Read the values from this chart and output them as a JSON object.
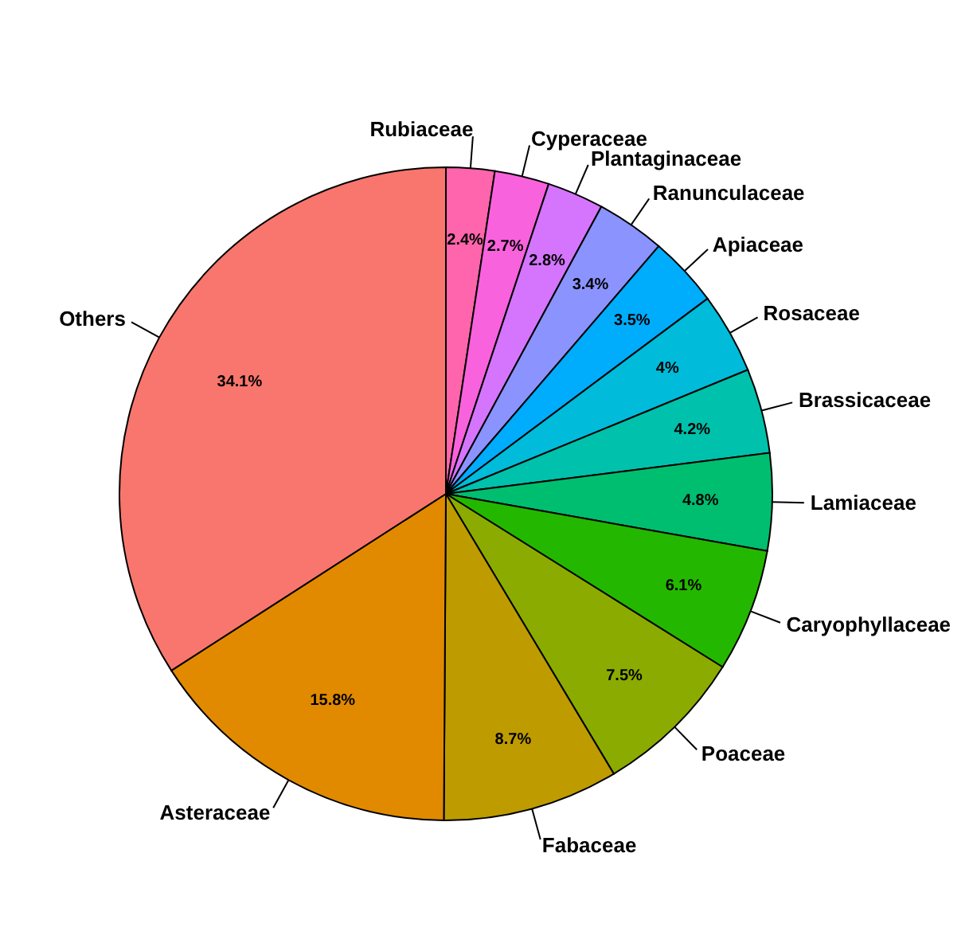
{
  "chart_data": {
    "type": "pie",
    "categories": [
      "Rubiaceae",
      "Cyperaceae",
      "Plantaginaceae",
      "Ranunculaceae",
      "Apiaceae",
      "Rosaceae",
      "Brassicaceae",
      "Lamiaceae",
      "Caryophyllaceae",
      "Poaceae",
      "Fabaceae",
      "Asteraceae",
      "Others"
    ],
    "values": [
      2.4,
      2.7,
      2.8,
      3.4,
      3.5,
      4,
      4.2,
      4.8,
      6.1,
      7.5,
      8.7,
      15.8,
      34.1
    ],
    "colors": [
      "#ff65ac",
      "#f962dd",
      "#d575fe",
      "#8b93ff",
      "#00acfc",
      "#00bbda",
      "#00c1ab",
      "#00be70",
      "#24b700",
      "#8cab00",
      "#be9c00",
      "#e18a00",
      "#f8766d"
    ],
    "value_labels": [
      "2.4%",
      "2.7%",
      "2.8%",
      "3.4%",
      "3.5%",
      "4%",
      "4.2%",
      "4.8%",
      "6.1%",
      "7.5%",
      "8.7%",
      "15.8%",
      "34.1%"
    ]
  }
}
